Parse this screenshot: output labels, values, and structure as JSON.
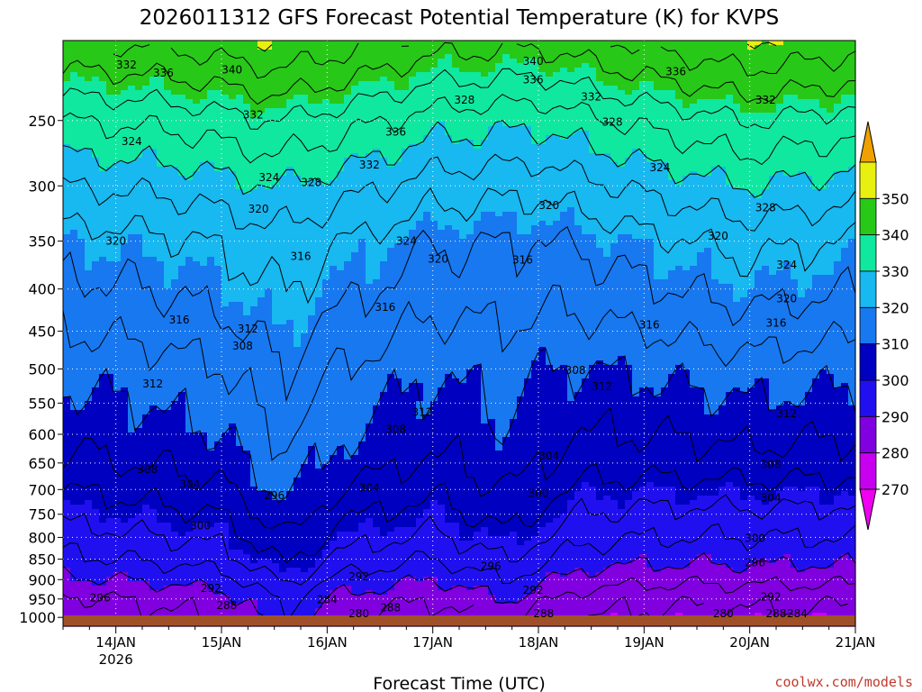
{
  "chart_data": {
    "type": "heatmap",
    "title": "2026011312 GFS Forecast Potential Temperature (K) for KVPS",
    "xlabel": "Forecast Time (UTC)",
    "ylabel": "",
    "credit": "coolwx.com/models",
    "x_ticks": [
      {
        "label": "14JAN",
        "sub": "2026",
        "day": 0.5
      },
      {
        "label": "15JAN",
        "sub": "",
        "day": 1.5
      },
      {
        "label": "16JAN",
        "sub": "",
        "day": 2.5
      },
      {
        "label": "17JAN",
        "sub": "",
        "day": 3.5
      },
      {
        "label": "18JAN",
        "sub": "",
        "day": 4.5
      },
      {
        "label": "19JAN",
        "sub": "",
        "day": 5.5
      },
      {
        "label": "20JAN",
        "sub": "",
        "day": 6.5
      },
      {
        "label": "21JAN",
        "sub": "",
        "day": 7.5
      }
    ],
    "x_range_days": [
      0,
      7.5
    ],
    "y_ticks": [
      250,
      300,
      350,
      400,
      450,
      500,
      550,
      600,
      650,
      700,
      750,
      800,
      850,
      900,
      950,
      1000
    ],
    "y_range_hpa": [
      200,
      1025
    ],
    "y_axis_scale": "log",
    "colorbar": {
      "levels": [
        270,
        280,
        290,
        300,
        310,
        320,
        330,
        340,
        350
      ],
      "labels": [
        "270",
        "280",
        "290",
        "300",
        "310",
        "320",
        "330",
        "340",
        "350"
      ],
      "colors": [
        "#f000f0",
        "#c800f0",
        "#8000e0",
        "#2010f0",
        "#0000c0",
        "#1878f0",
        "#18b8f0",
        "#10e8a0",
        "#28c818",
        "#e8f010",
        "#f0a000"
      ]
    },
    "ground_color": "#a05028",
    "base_profile": [
      {
        "hpa": 200,
        "theta": 346
      },
      {
        "hpa": 250,
        "theta": 334
      },
      {
        "hpa": 300,
        "theta": 326
      },
      {
        "hpa": 350,
        "theta": 320
      },
      {
        "hpa": 400,
        "theta": 317
      },
      {
        "hpa": 450,
        "theta": 314
      },
      {
        "hpa": 500,
        "theta": 311
      },
      {
        "hpa": 550,
        "theta": 309
      },
      {
        "hpa": 600,
        "theta": 307
      },
      {
        "hpa": 650,
        "theta": 305
      },
      {
        "hpa": 700,
        "theta": 302
      },
      {
        "hpa": 750,
        "theta": 299
      },
      {
        "hpa": 800,
        "theta": 296
      },
      {
        "hpa": 850,
        "theta": 293
      },
      {
        "hpa": 900,
        "theta": 289
      },
      {
        "hpa": 950,
        "theta": 285
      },
      {
        "hpa": 1000,
        "theta": 283
      },
      {
        "hpa": 1025,
        "theta": 282
      }
    ],
    "upper_anomaly": [
      {
        "day": 0.0,
        "dtheta": 0
      },
      {
        "day": 1.0,
        "dtheta": 1
      },
      {
        "day": 2.0,
        "dtheta": 4
      },
      {
        "day": 2.6,
        "dtheta": 2
      },
      {
        "day": 3.5,
        "dtheta": -2
      },
      {
        "day": 4.5,
        "dtheta": -3
      },
      {
        "day": 5.5,
        "dtheta": 1
      },
      {
        "day": 6.5,
        "dtheta": 4
      },
      {
        "day": 7.5,
        "dtheta": 2
      }
    ],
    "lower_anomaly": [
      {
        "day": 0.0,
        "dtheta": 0
      },
      {
        "day": 1.5,
        "dtheta": 3
      },
      {
        "day": 2.1,
        "dtheta": 10
      },
      {
        "day": 2.6,
        "dtheta": 4
      },
      {
        "day": 3.5,
        "dtheta": 1
      },
      {
        "day": 4.2,
        "dtheta": 5
      },
      {
        "day": 4.9,
        "dtheta": -1
      },
      {
        "day": 5.5,
        "dtheta": -2
      },
      {
        "day": 7.5,
        "dtheta": -2
      }
    ],
    "contour_labels": [
      {
        "text": "332",
        "day": 0.6,
        "hpa": 214
      },
      {
        "text": "336",
        "day": 0.95,
        "hpa": 219
      },
      {
        "text": "340",
        "day": 1.6,
        "hpa": 217
      },
      {
        "text": "332",
        "day": 1.8,
        "hpa": 246
      },
      {
        "text": "324",
        "day": 0.65,
        "hpa": 265
      },
      {
        "text": "324",
        "day": 1.95,
        "hpa": 293
      },
      {
        "text": "328",
        "day": 2.35,
        "hpa": 297
      },
      {
        "text": "320",
        "day": 1.85,
        "hpa": 320
      },
      {
        "text": "336",
        "day": 3.15,
        "hpa": 258
      },
      {
        "text": "332",
        "day": 2.9,
        "hpa": 283
      },
      {
        "text": "328",
        "day": 3.8,
        "hpa": 236
      },
      {
        "text": "340",
        "day": 4.45,
        "hpa": 212
      },
      {
        "text": "336",
        "day": 4.45,
        "hpa": 223
      },
      {
        "text": "332",
        "day": 5.0,
        "hpa": 234
      },
      {
        "text": "328",
        "day": 5.2,
        "hpa": 251
      },
      {
        "text": "324",
        "day": 5.65,
        "hpa": 285
      },
      {
        "text": "336",
        "day": 5.8,
        "hpa": 218
      },
      {
        "text": "332",
        "day": 6.65,
        "hpa": 236
      },
      {
        "text": "328",
        "day": 6.65,
        "hpa": 319
      },
      {
        "text": "324",
        "day": 6.85,
        "hpa": 374
      },
      {
        "text": "320",
        "day": 6.85,
        "hpa": 411
      },
      {
        "text": "320",
        "day": 0.5,
        "hpa": 350
      },
      {
        "text": "316",
        "day": 2.25,
        "hpa": 365
      },
      {
        "text": "324",
        "day": 3.25,
        "hpa": 350
      },
      {
        "text": "320",
        "day": 3.55,
        "hpa": 368
      },
      {
        "text": "316",
        "day": 3.05,
        "hpa": 421
      },
      {
        "text": "316",
        "day": 4.35,
        "hpa": 369
      },
      {
        "text": "320",
        "day": 4.6,
        "hpa": 317
      },
      {
        "text": "316",
        "day": 5.55,
        "hpa": 442
      },
      {
        "text": "320",
        "day": 6.2,
        "hpa": 345
      },
      {
        "text": "316",
        "day": 6.75,
        "hpa": 440
      },
      {
        "text": "316",
        "day": 1.1,
        "hpa": 436
      },
      {
        "text": "312",
        "day": 1.75,
        "hpa": 447
      },
      {
        "text": "308",
        "day": 1.7,
        "hpa": 469
      },
      {
        "text": "312",
        "day": 0.85,
        "hpa": 521
      },
      {
        "text": "312",
        "day": 3.4,
        "hpa": 564
      },
      {
        "text": "308",
        "day": 3.15,
        "hpa": 592
      },
      {
        "text": "308",
        "day": 4.85,
        "hpa": 502
      },
      {
        "text": "312",
        "day": 5.1,
        "hpa": 525
      },
      {
        "text": "312",
        "day": 6.85,
        "hpa": 566
      },
      {
        "text": "308",
        "day": 0.8,
        "hpa": 662
      },
      {
        "text": "304",
        "day": 1.2,
        "hpa": 690
      },
      {
        "text": "304",
        "day": 2.9,
        "hpa": 697
      },
      {
        "text": "304",
        "day": 4.6,
        "hpa": 637
      },
      {
        "text": "308",
        "day": 6.7,
        "hpa": 653
      },
      {
        "text": "304",
        "day": 6.7,
        "hpa": 716
      },
      {
        "text": "296",
        "day": 2.0,
        "hpa": 712
      },
      {
        "text": "300",
        "day": 1.3,
        "hpa": 774
      },
      {
        "text": "300",
        "day": 4.5,
        "hpa": 707
      },
      {
        "text": "300",
        "day": 6.55,
        "hpa": 802
      },
      {
        "text": "296",
        "day": 6.55,
        "hpa": 858
      },
      {
        "text": "296",
        "day": 4.05,
        "hpa": 867
      },
      {
        "text": "292",
        "day": 2.8,
        "hpa": 893
      },
      {
        "text": "292",
        "day": 4.45,
        "hpa": 927
      },
      {
        "text": "292",
        "day": 6.7,
        "hpa": 944
      },
      {
        "text": "296",
        "day": 0.35,
        "hpa": 947
      },
      {
        "text": "292",
        "day": 1.4,
        "hpa": 922
      },
      {
        "text": "288",
        "day": 1.55,
        "hpa": 968
      },
      {
        "text": "284",
        "day": 2.5,
        "hpa": 952
      },
      {
        "text": "288",
        "day": 3.1,
        "hpa": 973
      },
      {
        "text": "288",
        "day": 4.55,
        "hpa": 994
      },
      {
        "text": "288",
        "day": 6.75,
        "hpa": 998
      },
      {
        "text": "284",
        "day": 6.95,
        "hpa": 1020
      },
      {
        "text": "280",
        "day": 2.8,
        "hpa": 1017
      },
      {
        "text": "280",
        "day": 6.25,
        "hpa": 1028
      }
    ]
  }
}
